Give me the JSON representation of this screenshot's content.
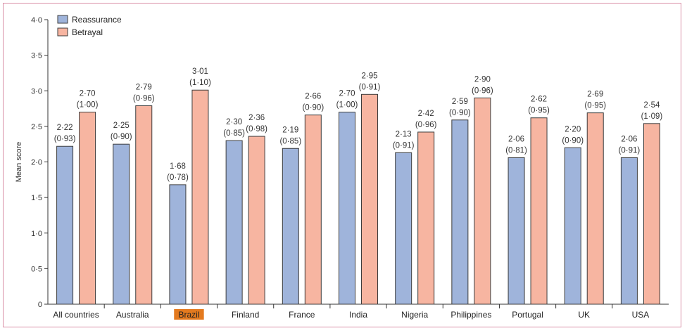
{
  "chart_data": {
    "type": "bar",
    "ylabel": "Mean score",
    "ylim": [
      0,
      4
    ],
    "ytick_labels": [
      "0",
      "0·5",
      "1·0",
      "1·5",
      "2·0",
      "2·5",
      "3·0",
      "3·5",
      "4·0"
    ],
    "categories": [
      "All countries",
      "Australia",
      "Brazil",
      "Finland",
      "France",
      "India",
      "Nigeria",
      "Philippines",
      "Portugal",
      "UK",
      "USA"
    ],
    "highlighted_category": "Brazil",
    "legend_position": "top-left",
    "grid": false,
    "series": [
      {
        "name": "Reassurance",
        "color": "#9fb4db",
        "values": [
          2.22,
          2.25,
          1.68,
          2.3,
          2.19,
          2.7,
          2.13,
          2.59,
          2.06,
          2.2,
          2.06
        ],
        "mean_labels": [
          "2·22",
          "2·25",
          "1·68",
          "2·30",
          "2·19",
          "2·70",
          "2·13",
          "2·59",
          "2·06",
          "2·20",
          "2·06"
        ],
        "sd_labels": [
          "(0·93)",
          "(0·90)",
          "(0·78)",
          "(0·85)",
          "(0·85)",
          "(1·00)",
          "(0·91)",
          "(0·90)",
          "(0·81)",
          "(0·90)",
          "(0·91)"
        ]
      },
      {
        "name": "Betrayal",
        "color": "#f7b5a1",
        "values": [
          2.7,
          2.79,
          3.01,
          2.36,
          2.66,
          2.95,
          2.42,
          2.9,
          2.62,
          2.69,
          2.54
        ],
        "mean_labels": [
          "2·70",
          "2·79",
          "3·01",
          "2·36",
          "2·66",
          "2·95",
          "2·42",
          "2·90",
          "2·62",
          "2·69",
          "2·54"
        ],
        "sd_labels": [
          "(1·00)",
          "(0·96)",
          "(1·10)",
          "(0·98)",
          "(0·90)",
          "(0·91)",
          "(0·96)",
          "(0·96)",
          "(0·95)",
          "(0·95)",
          "(1·09)"
        ]
      }
    ],
    "colors": {
      "highlight": "#e47a1f",
      "frame": "#d98fa6",
      "bar_stroke": "#3c3c3c"
    }
  }
}
